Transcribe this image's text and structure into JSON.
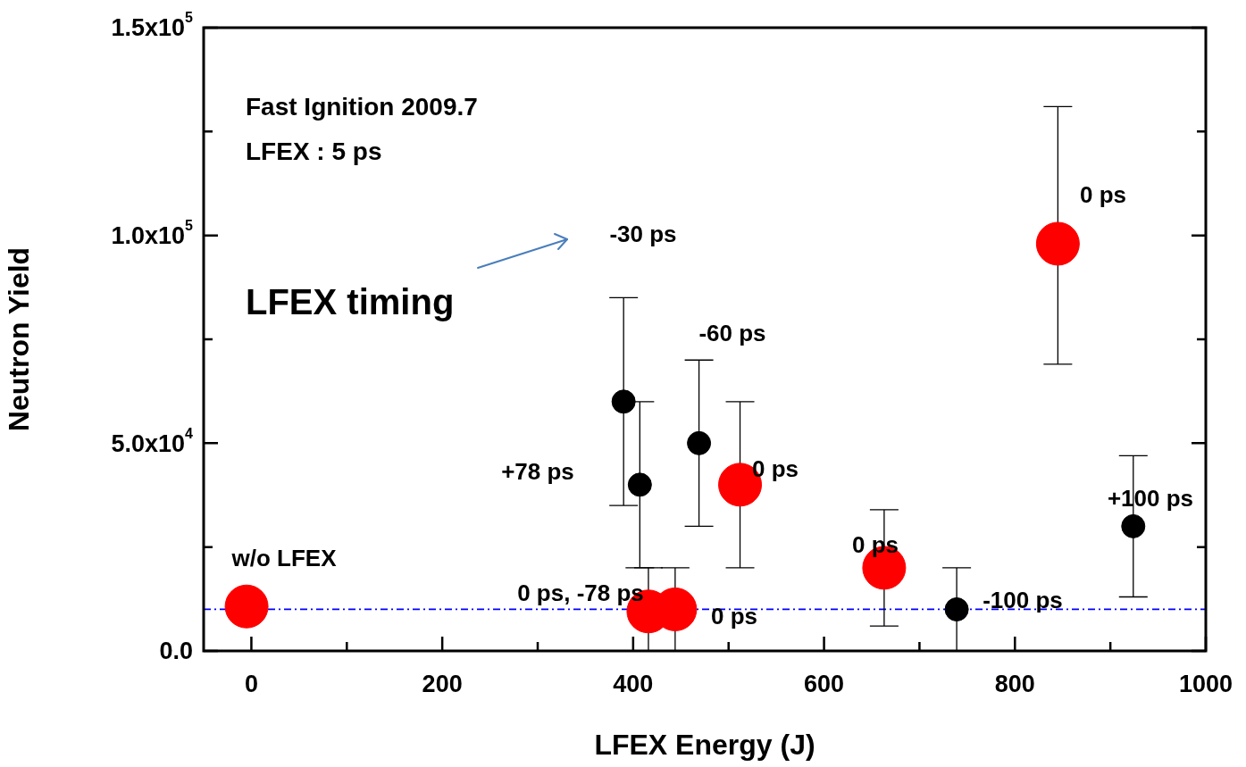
{
  "chart_data": {
    "type": "scatter",
    "xlabel": "LFEX Energy (J)",
    "ylabel": "Neutron Yield",
    "xlim": [
      -50,
      1000
    ],
    "xticks": [
      0,
      {
        "value": 100,
        "label": null
      },
      200,
      {
        "value": 300,
        "label": null
      },
      400,
      {
        "value": 500,
        "label": null
      },
      600,
      {
        "value": 700,
        "label": null
      },
      800,
      {
        "value": 900,
        "label": null
      },
      1000
    ],
    "ylim": [
      0,
      150000
    ],
    "yticks": [
      {
        "value": 0,
        "label": "0.0"
      },
      {
        "value": 25000,
        "label": null
      },
      {
        "value": 50000,
        "label": "5.0x10$^{4}$"
      },
      {
        "value": 75000,
        "label": null
      },
      {
        "value": 100000,
        "label": "1.0x10$^{5}$"
      },
      {
        "value": 125000,
        "label": null
      },
      {
        "value": 150000,
        "label": "1.5x10$^{5}$"
      }
    ],
    "marker": "circle",
    "series": [
      {
        "color": "#000000",
        "x": [
          390,
          407,
          469,
          739,
          924
        ],
        "values": [
          60000,
          40000,
          50000,
          10000,
          30000
        ],
        "errors": [
          [
            35000,
            85000
          ],
          [
            20000,
            60000
          ],
          [
            30000,
            70000
          ],
          [
            0,
            20000
          ],
          [
            13000,
            47000
          ]
        ]
      },
      {
        "color": "#ff0000",
        "x": [
          -5,
          416,
          444,
          512,
          663,
          845
        ],
        "values": [
          10700,
          9500,
          10000,
          40000,
          20000,
          98000
        ],
        "errors": [
          null,
          [
            0,
            20000
          ],
          [
            0,
            20000
          ],
          [
            20000,
            60000
          ],
          [
            6000,
            34000
          ],
          [
            69000,
            131000
          ]
        ]
      }
    ],
    "ref_lines": [
      {
        "axis": "y",
        "value": 10000,
        "color": "#0000ff",
        "line_style": "dashdot"
      }
    ],
    "annotations": [
      "Fast Ignition 2009.7",
      "LFEX : 5 ps",
      "LFEX timing",
      "0 ps",
      "-30 ps",
      "-60 ps",
      "+78 ps",
      "0 ps",
      "w/o LFEX",
      "0 ps, -78 ps",
      "0 ps",
      "0 ps",
      "-100 ps",
      "+100 ps"
    ]
  }
}
